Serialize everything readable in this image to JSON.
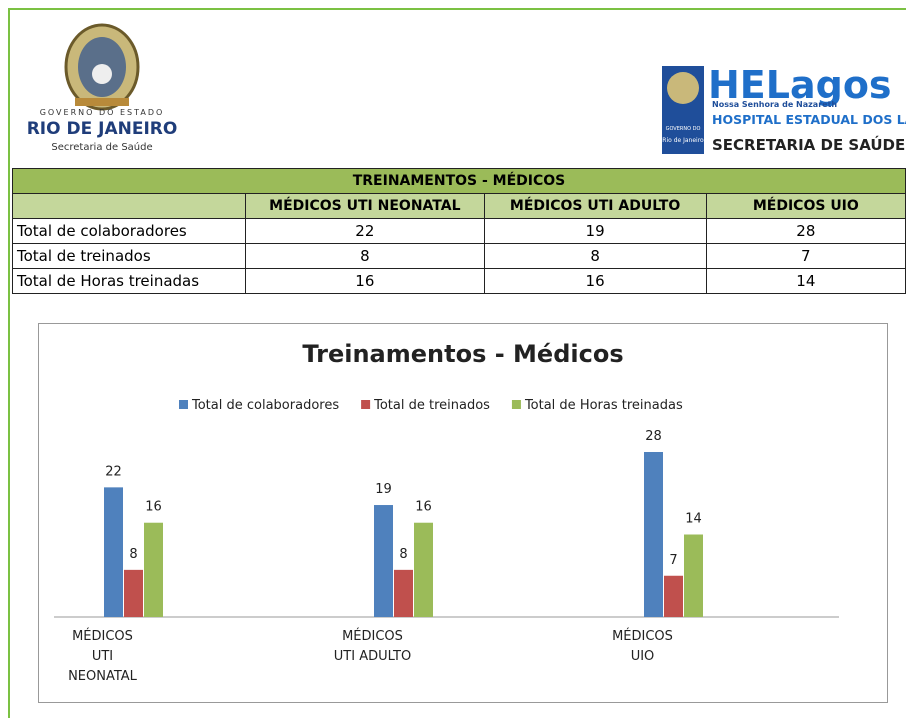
{
  "header": {
    "left_logo": {
      "line1": "GOVERNO DO ESTADO",
      "line2": "RIO DE JANEIRO",
      "line3": "Secretaria de Saúde"
    },
    "right_logo": {
      "brand": "HELagos",
      "tagline": "Nossa Senhora de Nazareth",
      "hospital": "HOSPITAL ESTADUAL DOS LAGOS",
      "secretaria": "SECRETARIA DE SAÚDE",
      "badge_top": "GOVERNO DO",
      "badge_bottom": "Rio de Janeiro"
    }
  },
  "table": {
    "title": "TREINAMENTOS - MÉDICOS",
    "columns": [
      "MÉDICOS UTI NEONATAL",
      "MÉDICOS UTI ADULTO",
      "MÉDICOS UIO"
    ],
    "rows": [
      {
        "label": "Total de colaboradores",
        "values": [
          22,
          19,
          28
        ]
      },
      {
        "label": "Total de treinados",
        "values": [
          8,
          8,
          7
        ]
      },
      {
        "label": "Total de Horas treinadas",
        "values": [
          16,
          16,
          14
        ]
      }
    ]
  },
  "chart_data": {
    "type": "bar",
    "title": "Treinamentos - Médicos",
    "categories": [
      "MÉDICOS\nUTI\nNEONATAL",
      "MÉDICOS\nUTI ADULTO",
      "MÉDICOS\nUIO"
    ],
    "series": [
      {
        "name": "Total de colaboradores",
        "color": "#4f81bd",
        "values": [
          22,
          19,
          28
        ]
      },
      {
        "name": "Total de treinados",
        "color": "#c0504d",
        "values": [
          8,
          8,
          7
        ]
      },
      {
        "name": "Total de Horas treinadas",
        "color": "#9bbb59",
        "values": [
          16,
          16,
          14
        ]
      }
    ],
    "legend": "top"
  }
}
